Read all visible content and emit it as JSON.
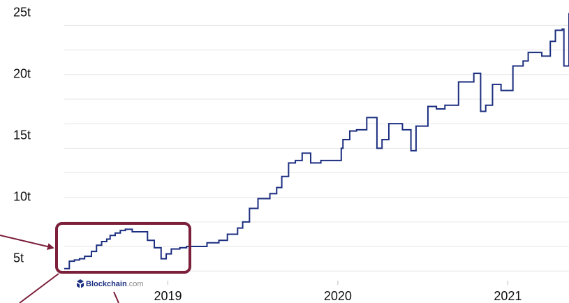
{
  "chart_data": {
    "type": "line",
    "step": true,
    "watermark_parts": [
      "Blockchain",
      ".com"
    ],
    "x": [
      2018.39,
      2018.42,
      2018.45,
      2018.48,
      2018.51,
      2018.55,
      2018.58,
      2018.61,
      2018.64,
      2018.66,
      2018.69,
      2018.72,
      2018.75,
      2018.79,
      2018.88,
      2018.92,
      2018.96,
      2018.99,
      2019.02,
      2019.07,
      2019.11,
      2019.23,
      2019.3,
      2019.35,
      2019.41,
      2019.44,
      2019.48,
      2019.53,
      2019.6,
      2019.64,
      2019.67,
      2019.71,
      2019.75,
      2019.79,
      2019.84,
      2019.9,
      2019.98,
      2020.02,
      2020.03,
      2020.07,
      2020.11,
      2020.17,
      2020.23,
      2020.26,
      2020.3,
      2020.34,
      2020.38,
      2020.43,
      2020.46,
      2020.53,
      2020.58,
      2020.63,
      2020.71,
      2020.8,
      2020.84,
      2020.87,
      2020.91,
      2020.96,
      2021.03,
      2021.09,
      2021.12,
      2021.16,
      2021.2,
      2021.25,
      2021.28,
      2021.32,
      2021.33,
      2021.36
    ],
    "series": [
      {
        "color": "#1c2f80",
        "values": [
          4.2,
          4.8,
          4.9,
          5.0,
          5.2,
          5.6,
          6.1,
          6.4,
          6.6,
          6.9,
          7.1,
          7.3,
          7.4,
          7.2,
          6.5,
          5.9,
          5.0,
          5.4,
          5.8,
          5.9,
          6.0,
          6.3,
          6.5,
          7.0,
          7.5,
          8.0,
          9.1,
          9.9,
          10.3,
          10.8,
          11.7,
          12.8,
          13.0,
          13.6,
          12.8,
          13.0,
          13.0,
          14.0,
          14.7,
          15.4,
          15.5,
          16.5,
          14.0,
          14.7,
          16.0,
          16.0,
          15.5,
          13.8,
          15.8,
          17.4,
          17.2,
          17.5,
          19.4,
          20.1,
          17.0,
          17.5,
          19.2,
          18.7,
          20.7,
          21.1,
          21.8,
          21.8,
          21.5,
          22.7,
          23.6,
          23.7,
          20.7,
          25.0
        ]
      }
    ],
    "xlim": [
      2018.39,
      2021.36
    ],
    "xticks": [
      2019,
      2020,
      2021
    ],
    "ylim": [
      3.9,
      25.5
    ],
    "yticks": [
      {
        "value": 5,
        "label": "5t"
      },
      {
        "value": 10,
        "label": "10t"
      },
      {
        "value": 15,
        "label": "15t"
      },
      {
        "value": 20,
        "label": "20t"
      },
      {
        "value": 25,
        "label": "25t"
      }
    ],
    "grid_lines": [
      4,
      6,
      8,
      10,
      12,
      14,
      16,
      18,
      20,
      22,
      24
    ],
    "grid": true
  }
}
